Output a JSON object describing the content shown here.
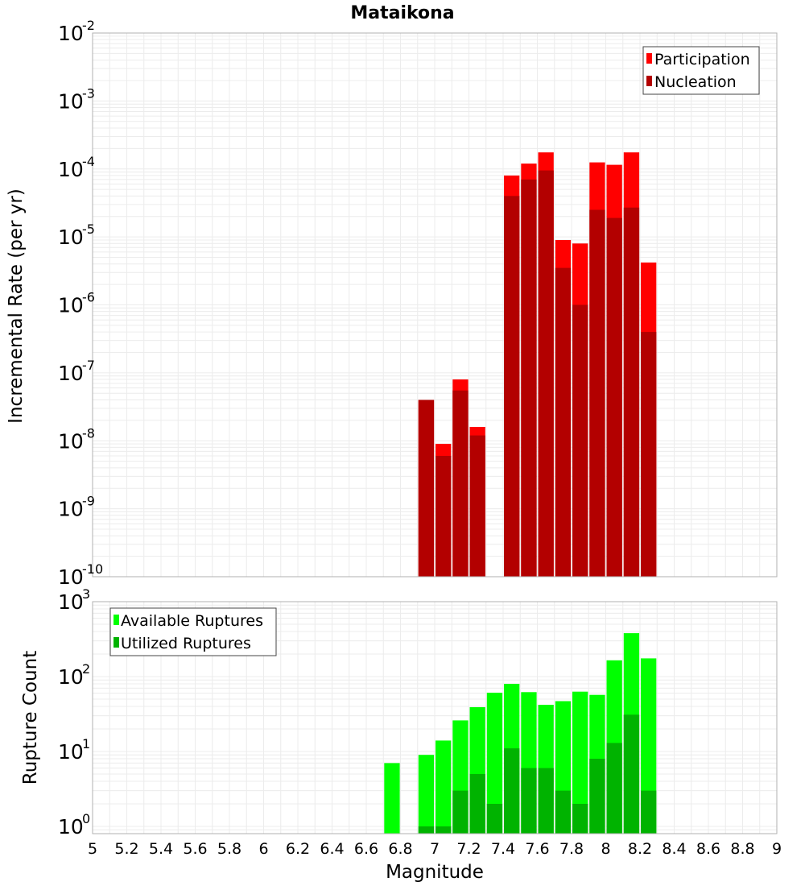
{
  "chart_data": [
    {
      "type": "bar",
      "title": "Mataikona",
      "ylabel": "Incremental Rate (per yr)",
      "xlabel": "",
      "yscale": "log",
      "ylim": [
        1e-10,
        0.01
      ],
      "xlim": [
        5,
        9
      ],
      "y_tick_labels": [
        {
          "base": "10",
          "exp": "-10"
        },
        {
          "base": "10",
          "exp": "-9"
        },
        {
          "base": "10",
          "exp": "-8"
        },
        {
          "base": "10",
          "exp": "-7"
        },
        {
          "base": "10",
          "exp": "-6"
        },
        {
          "base": "10",
          "exp": "-5"
        },
        {
          "base": "10",
          "exp": "-4"
        },
        {
          "base": "10",
          "exp": "-3"
        },
        {
          "base": "10",
          "exp": "-2"
        }
      ],
      "grid": true,
      "legend_position": "top-right",
      "bar_mode": "overlay",
      "x": [
        6.95,
        7.05,
        7.15,
        7.25,
        7.45,
        7.55,
        7.65,
        7.75,
        7.85,
        7.95,
        8.05,
        8.15,
        8.25
      ],
      "series": [
        {
          "name": "Participation",
          "color": "#ff0000",
          "values": [
            4e-08,
            9e-09,
            8e-08,
            1.6e-08,
            8e-05,
            0.00012,
            0.000175,
            9e-06,
            8e-06,
            0.000125,
            0.000115,
            0.000175,
            4.2e-06
          ]
        },
        {
          "name": "Nucleation",
          "color": "#b30000",
          "values": [
            4e-08,
            6e-09,
            5.5e-08,
            1.2e-08,
            4e-05,
            7e-05,
            9.5e-05,
            3.5e-06,
            1e-06,
            2.5e-05,
            1.9e-05,
            2.7e-05,
            4e-07
          ]
        }
      ]
    },
    {
      "type": "bar",
      "title": "",
      "ylabel": "Rupture Count",
      "xlabel": "Magnitude",
      "yscale": "log",
      "ylim": [
        0.8,
        1000
      ],
      "xlim": [
        5,
        9
      ],
      "y_tick_labels": [
        {
          "base": "10",
          "exp": "0"
        },
        {
          "base": "10",
          "exp": "1"
        },
        {
          "base": "10",
          "exp": "2"
        },
        {
          "base": "10",
          "exp": "3"
        }
      ],
      "x_tick_labels": [
        "5",
        "5.2",
        "5.4",
        "5.6",
        "5.8",
        "6",
        "6.2",
        "6.4",
        "6.6",
        "6.8",
        "7",
        "7.2",
        "7.4",
        "7.6",
        "7.8",
        "8",
        "8.2",
        "8.4",
        "8.6",
        "8.8",
        "9"
      ],
      "grid": true,
      "legend_position": "top-left",
      "bar_mode": "overlay",
      "x": [
        6.75,
        6.95,
        7.05,
        7.15,
        7.25,
        7.35,
        7.45,
        7.55,
        7.65,
        7.75,
        7.85,
        7.95,
        8.05,
        8.15,
        8.25
      ],
      "series": [
        {
          "name": "Available Ruptures",
          "color": "#00ff00",
          "values": [
            7,
            9,
            14,
            26,
            39,
            61,
            80,
            62,
            42,
            47,
            63,
            57,
            165,
            380,
            175
          ]
        },
        {
          "name": "Utilized Ruptures",
          "color": "#00b300",
          "values": [
            0,
            1,
            1,
            3,
            5,
            2,
            11,
            6,
            6,
            3,
            2,
            8,
            13,
            31,
            3
          ]
        }
      ]
    }
  ]
}
